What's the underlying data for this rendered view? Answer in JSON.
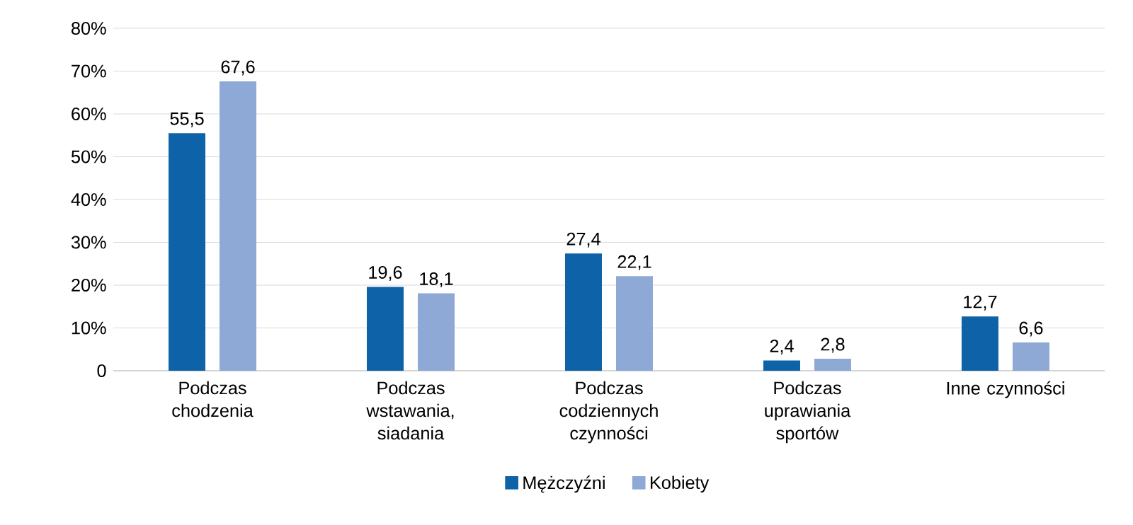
{
  "chart_data": {
    "type": "bar",
    "categories": [
      "Podczas chodzenia",
      "Podczas wstawania, siadania",
      "Podczas codziennych czynności",
      "Podczas uprawiania sportów",
      "Inne czynności"
    ],
    "series": [
      {
        "name": "Mężczyźni",
        "color": "#0e63a8",
        "values": [
          55.5,
          19.6,
          27.4,
          2.4,
          12.7
        ],
        "value_labels": [
          "55,5",
          "19,6",
          "27,4",
          "2,4",
          "12,7"
        ]
      },
      {
        "name": "Kobiety",
        "color": "#8ea9d5",
        "values": [
          67.6,
          18.1,
          22.1,
          2.8,
          6.6
        ],
        "value_labels": [
          "67,6",
          "18,1",
          "22,1",
          "2,8",
          "6,6"
        ]
      }
    ],
    "ylim": [
      0,
      80
    ],
    "yticks": [
      0,
      {
        "value": 10,
        "label": "10%"
      },
      {
        "value": 20,
        "label": "20%"
      },
      {
        "value": 30,
        "label": "30%"
      },
      {
        "value": 40,
        "label": "40%"
      },
      {
        "value": 50,
        "label": "50%"
      },
      {
        "value": 60,
        "label": "60%"
      },
      {
        "value": 70,
        "label": "70%"
      },
      {
        "value": 80,
        "label": "80%"
      }
    ],
    "grid": "y",
    "legend": "bottom"
  }
}
